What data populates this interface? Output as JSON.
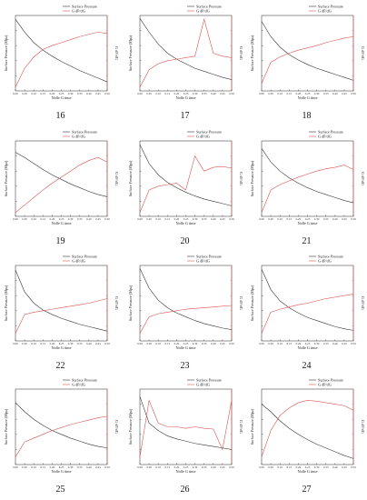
{
  "figure": {
    "legend": [
      "Surface Pressure",
      "G dP/dG"
    ],
    "xlabel": "Nolle G time",
    "ylabel_left": "Surface Pressure (Mpa)",
    "ylabel_right": "G dP/dG"
  },
  "colors": {
    "pressure": "#333333",
    "gdpdg": "#d9534f",
    "axis": "#222222"
  },
  "chart_data": [
    {
      "id": "16",
      "type": "line",
      "title": "",
      "label": "16",
      "x": [
        0.0,
        0.05,
        0.1,
        0.15,
        0.2,
        0.25,
        0.3,
        0.35,
        0.4,
        0.45,
        0.5
      ],
      "series": [
        {
          "name": "Surface Pressure",
          "values": [
            0.95,
            0.78,
            0.64,
            0.54,
            0.46,
            0.39,
            0.33,
            0.27,
            0.22,
            0.17,
            0.12
          ]
        },
        {
          "name": "G dP/dG",
          "values": [
            0.05,
            0.3,
            0.45,
            0.55,
            0.6,
            0.64,
            0.68,
            0.72,
            0.75,
            0.78,
            0.76
          ]
        }
      ]
    },
    {
      "id": "17",
      "type": "line",
      "title": "",
      "label": "17",
      "x": [
        0.0,
        0.05,
        0.1,
        0.15,
        0.2,
        0.25,
        0.3,
        0.35,
        0.4,
        0.45,
        0.5
      ],
      "series": [
        {
          "name": "Surface Pressure",
          "values": [
            0.96,
            0.78,
            0.62,
            0.5,
            0.42,
            0.36,
            0.3,
            0.26,
            0.22,
            0.18,
            0.15
          ]
        },
        {
          "name": "G dP/dG",
          "values": [
            0.05,
            0.28,
            0.36,
            0.4,
            0.42,
            0.44,
            0.46,
            0.95,
            0.5,
            0.46,
            0.44
          ]
        }
      ]
    },
    {
      "id": "18",
      "type": "line",
      "title": "",
      "label": "18",
      "x": [
        0.0,
        0.05,
        0.1,
        0.15,
        0.2,
        0.25,
        0.3,
        0.35,
        0.4,
        0.45,
        0.5
      ],
      "series": [
        {
          "name": "Surface Pressure",
          "values": [
            0.92,
            0.72,
            0.58,
            0.48,
            0.41,
            0.35,
            0.3,
            0.26,
            0.22,
            0.18,
            0.14
          ]
        },
        {
          "name": "G dP/dG",
          "values": [
            0.1,
            0.38,
            0.45,
            0.5,
            0.54,
            0.57,
            0.6,
            0.64,
            0.67,
            0.7,
            0.72
          ]
        }
      ]
    },
    {
      "id": "19",
      "type": "line",
      "title": "",
      "label": "19",
      "x": [
        0.0,
        0.05,
        0.1,
        0.15,
        0.2,
        0.25,
        0.3,
        0.35,
        0.4,
        0.45,
        0.5
      ],
      "series": [
        {
          "name": "Surface Pressure",
          "values": [
            0.85,
            0.78,
            0.7,
            0.62,
            0.55,
            0.49,
            0.43,
            0.38,
            0.33,
            0.29,
            0.26
          ]
        },
        {
          "name": "G dP/dG",
          "values": [
            0.05,
            0.15,
            0.25,
            0.35,
            0.44,
            0.52,
            0.6,
            0.68,
            0.74,
            0.78,
            0.72
          ]
        }
      ]
    },
    {
      "id": "20",
      "type": "line",
      "title": "",
      "label": "20",
      "x": [
        0.0,
        0.05,
        0.1,
        0.15,
        0.2,
        0.25,
        0.3,
        0.35,
        0.4,
        0.45,
        0.5
      ],
      "series": [
        {
          "name": "Surface Pressure",
          "values": [
            0.95,
            0.7,
            0.55,
            0.45,
            0.38,
            0.32,
            0.27,
            0.23,
            0.2,
            0.17,
            0.14
          ]
        },
        {
          "name": "G dP/dG",
          "values": [
            0.05,
            0.35,
            0.4,
            0.42,
            0.44,
            0.35,
            0.8,
            0.6,
            0.65,
            0.66,
            0.64
          ]
        }
      ]
    },
    {
      "id": "21",
      "type": "line",
      "title": "",
      "label": "21",
      "x": [
        0.0,
        0.05,
        0.1,
        0.15,
        0.2,
        0.25,
        0.3,
        0.35,
        0.4,
        0.45,
        0.5
      ],
      "series": [
        {
          "name": "Surface Pressure",
          "values": [
            0.9,
            0.72,
            0.6,
            0.51,
            0.44,
            0.38,
            0.33,
            0.29,
            0.25,
            0.21,
            0.18
          ]
        },
        {
          "name": "G dP/dG",
          "values": [
            0.05,
            0.35,
            0.42,
            0.47,
            0.52,
            0.56,
            0.6,
            0.63,
            0.65,
            0.68,
            0.62
          ]
        }
      ]
    },
    {
      "id": "22",
      "type": "line",
      "title": "",
      "label": "22",
      "x": [
        0.0,
        0.05,
        0.1,
        0.15,
        0.2,
        0.25,
        0.3,
        0.35,
        0.4,
        0.45,
        0.5
      ],
      "series": [
        {
          "name": "Surface Pressure",
          "values": [
            0.94,
            0.65,
            0.5,
            0.41,
            0.35,
            0.3,
            0.26,
            0.22,
            0.19,
            0.16,
            0.13
          ]
        },
        {
          "name": "G dP/dG",
          "values": [
            0.1,
            0.35,
            0.38,
            0.4,
            0.42,
            0.44,
            0.46,
            0.48,
            0.5,
            0.53,
            0.56
          ]
        }
      ]
    },
    {
      "id": "23",
      "type": "line",
      "title": "",
      "label": "23",
      "x": [
        0.0,
        0.05,
        0.1,
        0.15,
        0.2,
        0.25,
        0.3,
        0.35,
        0.4,
        0.45,
        0.5
      ],
      "series": [
        {
          "name": "Surface Pressure",
          "values": [
            0.96,
            0.7,
            0.54,
            0.44,
            0.37,
            0.32,
            0.27,
            0.23,
            0.2,
            0.17,
            0.15
          ]
        },
        {
          "name": "G dP/dG",
          "values": [
            0.1,
            0.32,
            0.36,
            0.38,
            0.4,
            0.42,
            0.43,
            0.44,
            0.45,
            0.46,
            0.47
          ]
        }
      ]
    },
    {
      "id": "24",
      "type": "line",
      "title": "",
      "label": "24",
      "x": [
        0.0,
        0.05,
        0.1,
        0.15,
        0.2,
        0.25,
        0.3,
        0.35,
        0.4,
        0.45,
        0.5
      ],
      "series": [
        {
          "name": "Surface Pressure",
          "values": [
            0.95,
            0.68,
            0.53,
            0.44,
            0.37,
            0.31,
            0.27,
            0.23,
            0.19,
            0.16,
            0.14
          ]
        },
        {
          "name": "G dP/dG",
          "values": [
            0.1,
            0.38,
            0.42,
            0.45,
            0.48,
            0.5,
            0.53,
            0.56,
            0.58,
            0.6,
            0.62
          ]
        }
      ]
    },
    {
      "id": "25",
      "type": "line",
      "title": "",
      "label": "25",
      "x": [
        0.0,
        0.05,
        0.1,
        0.15,
        0.2,
        0.25,
        0.3,
        0.35,
        0.4,
        0.45,
        0.5
      ],
      "series": [
        {
          "name": "Surface Pressure",
          "values": [
            0.82,
            0.7,
            0.6,
            0.52,
            0.45,
            0.4,
            0.35,
            0.31,
            0.27,
            0.24,
            0.22
          ]
        },
        {
          "name": "G dP/dG",
          "values": [
            0.1,
            0.3,
            0.35,
            0.4,
            0.45,
            0.49,
            0.53,
            0.56,
            0.59,
            0.62,
            0.64
          ]
        }
      ]
    },
    {
      "id": "26",
      "type": "line",
      "title": "",
      "label": "26",
      "x": [
        0.0,
        0.05,
        0.1,
        0.15,
        0.2,
        0.25,
        0.3,
        0.35,
        0.4,
        0.45,
        0.5
      ],
      "series": [
        {
          "name": "Surface Pressure",
          "values": [
            0.9,
            0.55,
            0.45,
            0.38,
            0.34,
            0.31,
            0.28,
            0.26,
            0.24,
            0.22,
            0.2
          ]
        },
        {
          "name": "G dP/dG",
          "values": [
            0.1,
            0.85,
            0.55,
            0.5,
            0.5,
            0.48,
            0.5,
            0.48,
            0.47,
            0.2,
            0.85
          ]
        }
      ]
    },
    {
      "id": "27",
      "type": "line",
      "title": "",
      "label": "27",
      "x": [
        0.0,
        0.05,
        0.1,
        0.15,
        0.2,
        0.25,
        0.3,
        0.35,
        0.4,
        0.45,
        0.5
      ],
      "series": [
        {
          "name": "Surface Pressure",
          "values": [
            0.8,
            0.7,
            0.58,
            0.48,
            0.4,
            0.33,
            0.27,
            0.22,
            0.17,
            0.12,
            0.08
          ]
        },
        {
          "name": "G dP/dG",
          "values": [
            0.1,
            0.45,
            0.65,
            0.75,
            0.82,
            0.85,
            0.84,
            0.82,
            0.8,
            0.78,
            0.72
          ]
        }
      ]
    }
  ]
}
